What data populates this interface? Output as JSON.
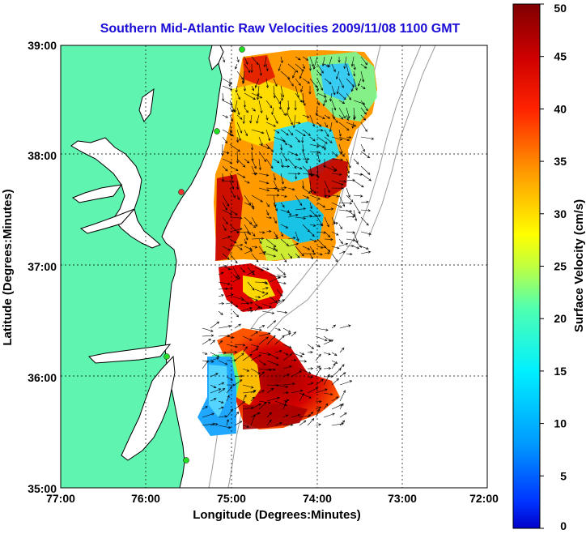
{
  "chart_data": {
    "type": "heatmap",
    "title": "Southern Mid-Atlantic Raw Velocities 2009/11/08 1100 GMT",
    "xlabel": "Longitude (Degrees:Minutes)",
    "ylabel": "Latitude (Degrees:Minutes)",
    "xlim": [
      -77,
      -72
    ],
    "ylim": [
      35,
      39
    ],
    "x_ticks": [
      "77:00",
      "76:00",
      "75:00",
      "74:00",
      "73:00",
      "72:00"
    ],
    "y_ticks": [
      "39:00",
      "38:00",
      "37:00",
      "36:00",
      "35:00"
    ],
    "grid": true,
    "colorbar": {
      "label": "Surface Velocity (cm/s)",
      "range": [
        0,
        50
      ],
      "ticks": [
        "50",
        "45",
        "40",
        "35",
        "30",
        "25",
        "20",
        "15",
        "10",
        "5",
        "0"
      ],
      "colormap": "jet"
    },
    "colors": {
      "land": "#5ff5b0",
      "title": "#1a0bd6",
      "coastline": "#000000",
      "bathymetry": "#9a9a9a",
      "station": "#22dd22"
    }
  }
}
